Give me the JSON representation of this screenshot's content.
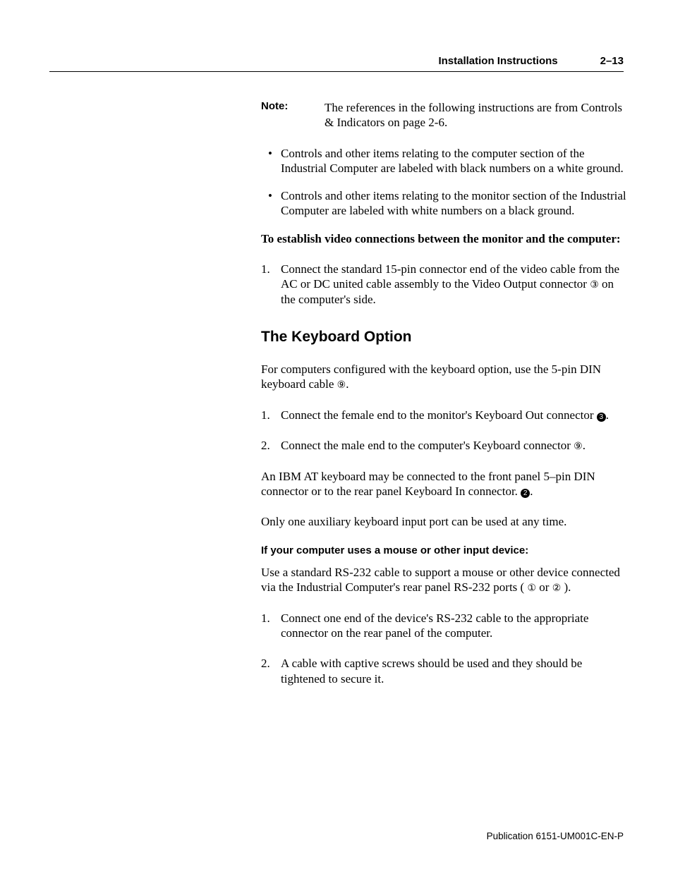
{
  "header": {
    "title": "Installation Instructions",
    "pagenum": "2–13"
  },
  "note": {
    "label": "Note:",
    "text": "The references in the following instructions are from Controls & Indicators on page 2-6."
  },
  "bullets": [
    "Controls and other items relating to the computer section of the Industrial Computer are labeled with black numbers on a white ground.",
    "Controls and other items relating to the monitor section of the Industrial Computer are labeled with white numbers on a black ground."
  ],
  "videoHeading": "To establish video connections between the monitor and the computer:",
  "videoStep1_a": "Connect the standard 15-pin connector end of the video cable from the AC or DC united cable assembly to the Video Output connector ",
  "videoStep1_ref": "③",
  "videoStep1_b": " on the computer's side.",
  "h2": "The Keyboard Option",
  "kbIntro_a": "For computers configured with the keyboard option, use the 5-pin DIN keyboard cable ",
  "kbIntro_ref": "⑨",
  "kbIntro_b": ".",
  "kbStep1_a": "Connect the female end to the monitor's Keyboard Out connector ",
  "kbStep1_ref": "❸",
  "kbStep1_b": ".",
  "kbStep2_a": "Connect the male end to the computer's Keyboard connector  ",
  "kbStep2_ref": "⑨",
  "kbStep2_b": ".",
  "ibmPara_a": "An IBM AT keyboard may be connected to the front panel 5–pin DIN connector or to the rear panel Keyboard In connector. ",
  "ibmPara_ref": "❷",
  "ibmPara_b": ".",
  "onlyOne": "Only one auxiliary keyboard input port can be used at any time.",
  "mouseHeading": "If your computer uses a mouse or other input device:",
  "mousePara_a": "Use a standard RS-232 cable to support a mouse or other device connected via the Industrial Computer's rear panel RS-232 ports ( ",
  "mousePara_ref1": "①",
  "mousePara_mid": " or ",
  "mousePara_ref2": "②",
  "mousePara_b": " ).",
  "mouseSteps": [
    "Connect one end of the device's RS-232 cable to the appropriate connector on the rear panel of the computer.",
    "A cable with captive screws should be used and they should be tightened to secure it."
  ],
  "footer": "Publication 6151-UM001C-EN-P",
  "num1": "1.",
  "num2": "2."
}
